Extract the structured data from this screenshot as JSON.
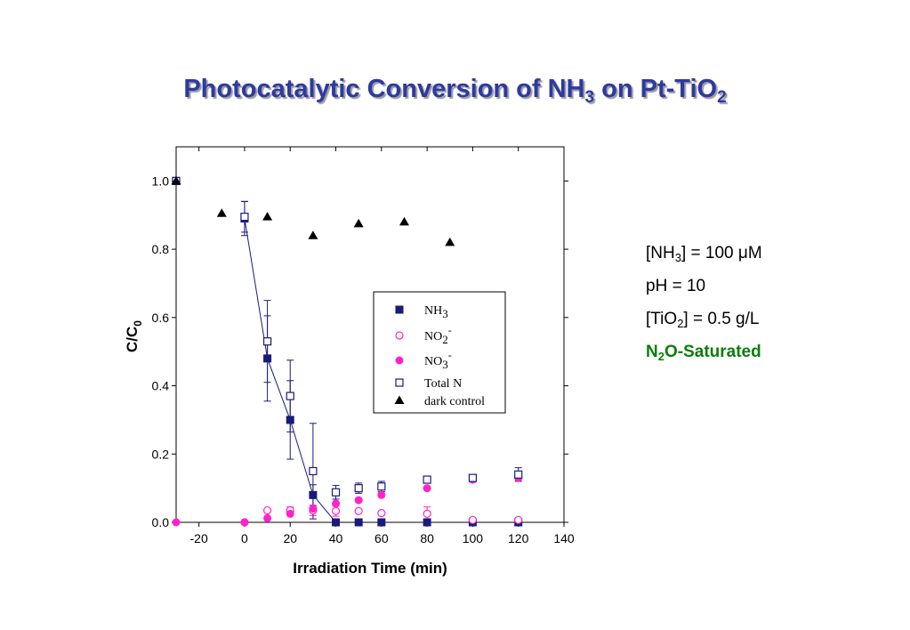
{
  "title": {
    "prefix": "Photocatalytic Conversion of NH",
    "sub1": "3",
    "middle": " on Pt-TiO",
    "sub2": "2"
  },
  "conditions": {
    "nh3_pre": "[NH",
    "nh3_sub": "3",
    "nh3_post": "] = 100 μM",
    "ph": "pH = 10",
    "tio2_pre": "[TiO",
    "tio2_sub": "2",
    "tio2_post": "] = 0.5 g/L",
    "n2o_pre": "N",
    "n2o_sub": "2",
    "n2o_post": "O-Saturated"
  },
  "chart_data": {
    "type": "scatter",
    "xlabel": "Irradiation Time (min)",
    "ylabel_main": "C/C",
    "ylabel_sub": "0",
    "xlim": [
      -30,
      140
    ],
    "ylim": [
      0,
      1.1
    ],
    "xticks": [
      -20,
      0,
      20,
      40,
      60,
      80,
      100,
      120,
      140
    ],
    "yticks": [
      0.0,
      0.2,
      0.4,
      0.6,
      0.8,
      1.0
    ],
    "grid": false,
    "legend_position": "center-right",
    "series": [
      {
        "name": "NH3",
        "label_main": "NH",
        "label_sub": "3",
        "label_sup": "",
        "marker": "square-filled",
        "color": "#1a1a7a",
        "points": [
          {
            "x": -30,
            "y": 1.0
          },
          {
            "x": 0,
            "y": 0.89,
            "err": 0.05
          },
          {
            "x": 10,
            "y": 0.48,
            "err": 0.125
          },
          {
            "x": 20,
            "y": 0.3,
            "err": 0.115
          },
          {
            "x": 30,
            "y": 0.08,
            "err": 0.03
          },
          {
            "x": 40,
            "y": 0.0
          },
          {
            "x": 50,
            "y": 0.0
          },
          {
            "x": 60,
            "y": 0.0
          },
          {
            "x": 80,
            "y": 0.0
          },
          {
            "x": 100,
            "y": 0.0
          },
          {
            "x": 120,
            "y": 0.0
          }
        ]
      },
      {
        "name": "NO2-",
        "label_main": "NO",
        "label_sub": "2",
        "label_sup": "-",
        "marker": "circle-open",
        "color": "#ff22cc",
        "points": [
          {
            "x": 0,
            "y": 0.0
          },
          {
            "x": 10,
            "y": 0.035
          },
          {
            "x": 20,
            "y": 0.035,
            "err": 0.01
          },
          {
            "x": 30,
            "y": 0.035,
            "err": 0.015
          },
          {
            "x": 40,
            "y": 0.033,
            "err": 0.015
          },
          {
            "x": 50,
            "y": 0.033
          },
          {
            "x": 60,
            "y": 0.027
          },
          {
            "x": 80,
            "y": 0.025,
            "err": 0.02
          },
          {
            "x": 100,
            "y": 0.007
          },
          {
            "x": 120,
            "y": 0.007
          }
        ]
      },
      {
        "name": "NO3-",
        "label_main": "NO",
        "label_sub": "3",
        "label_sup": "-",
        "marker": "circle-filled",
        "color": "#ff22cc",
        "points": [
          {
            "x": -30,
            "y": 0.0
          },
          {
            "x": 0,
            "y": 0.0
          },
          {
            "x": 10,
            "y": 0.012
          },
          {
            "x": 20,
            "y": 0.025
          },
          {
            "x": 30,
            "y": 0.04
          },
          {
            "x": 40,
            "y": 0.055
          },
          {
            "x": 50,
            "y": 0.065
          },
          {
            "x": 60,
            "y": 0.08
          },
          {
            "x": 80,
            "y": 0.1
          },
          {
            "x": 100,
            "y": 0.125
          },
          {
            "x": 120,
            "y": 0.13
          }
        ]
      },
      {
        "name": "Total N",
        "label_main": "Total N",
        "label_sub": "",
        "label_sup": "",
        "marker": "square-open",
        "color": "#1a1a7a",
        "points": [
          {
            "x": -30,
            "y": 1.0
          },
          {
            "x": 0,
            "y": 0.895,
            "err": 0.045
          },
          {
            "x": 10,
            "y": 0.53,
            "err": 0.12
          },
          {
            "x": 20,
            "y": 0.37,
            "err": 0.105
          },
          {
            "x": 30,
            "y": 0.15,
            "err": 0.14
          },
          {
            "x": 40,
            "y": 0.088,
            "err": 0.02
          },
          {
            "x": 50,
            "y": 0.1,
            "err": 0.015
          },
          {
            "x": 60,
            "y": 0.105,
            "err": 0.015
          },
          {
            "x": 80,
            "y": 0.125,
            "err": 0.01
          },
          {
            "x": 100,
            "y": 0.13,
            "err": 0.01
          },
          {
            "x": 120,
            "y": 0.14,
            "err": 0.02
          }
        ]
      },
      {
        "name": "dark control",
        "label_main": "dark control",
        "label_sub": "",
        "label_sup": "",
        "marker": "triangle-filled",
        "color": "#000000",
        "points": [
          {
            "x": -30,
            "y": 1.0
          },
          {
            "x": -10,
            "y": 0.905
          },
          {
            "x": 10,
            "y": 0.895
          },
          {
            "x": 30,
            "y": 0.84
          },
          {
            "x": 50,
            "y": 0.875
          },
          {
            "x": 70,
            "y": 0.88
          },
          {
            "x": 90,
            "y": 0.82
          }
        ]
      }
    ]
  }
}
